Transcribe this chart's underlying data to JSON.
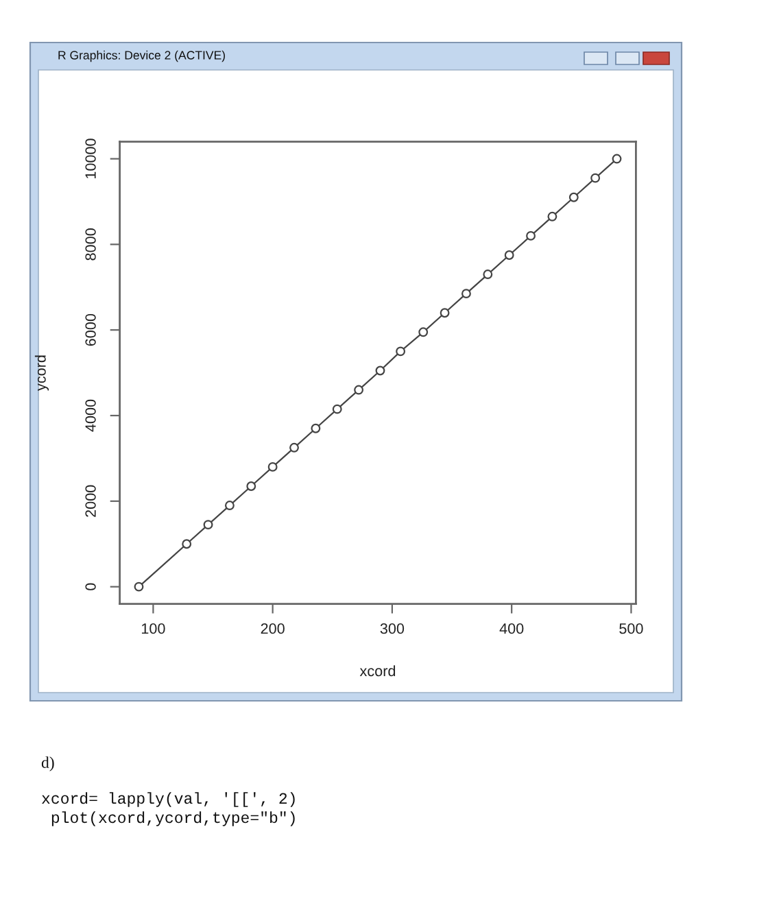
{
  "chart_data": {
    "type": "line",
    "xlabel": "xcord",
    "ylabel": "ycord",
    "x": [
      88,
      128,
      146,
      164,
      182,
      200,
      218,
      236,
      254,
      272,
      290,
      307,
      326,
      344,
      362,
      380,
      398,
      416,
      434,
      452,
      470,
      488
    ],
    "series": [
      {
        "color": "#444444",
        "values": [
          0,
          1000,
          1450,
          1900,
          2350,
          2800,
          3250,
          3700,
          4150,
          4600,
          5050,
          5500,
          5950,
          6400,
          6850,
          7300,
          7750,
          8200,
          8650,
          9100,
          9550,
          10000
        ]
      }
    ],
    "xlim": [
      72,
      504
    ],
    "ylim": [
      -400,
      10400
    ],
    "xticks": [
      100,
      200,
      300,
      400,
      500
    ],
    "yticks": [
      0,
      2000,
      4000,
      6000,
      8000,
      10000
    ],
    "marker": "circle",
    "line_style": "solid",
    "annotations": [
      "R Graphics: Device 2 (ACTIVE)",
      "d)",
      "xcord= lapply(val, '[[', 2)",
      " plot(xcord,ycord,type=\"b\")"
    ]
  }
}
